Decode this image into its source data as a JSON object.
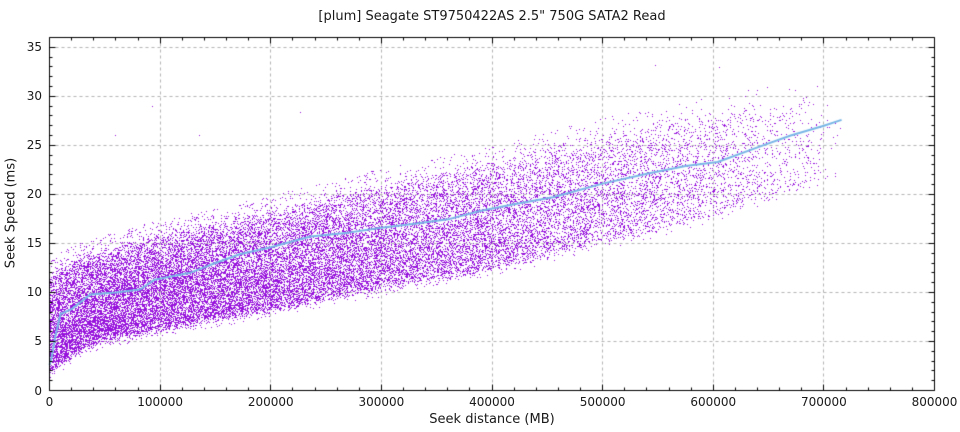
{
  "chart_data": {
    "type": "scatter",
    "title": "[plum] Seagate ST9750422AS 2.5\" 750G SATA2 Read",
    "xlabel": "Seek distance (MB)",
    "ylabel": "Seek Speed (ms)",
    "xlim": [
      0,
      800000
    ],
    "ylim": [
      0,
      36
    ],
    "x_major_ticks": [
      0,
      100000,
      200000,
      300000,
      400000,
      500000,
      600000,
      700000,
      800000
    ],
    "x_minor_step": 20000,
    "y_major_ticks": [
      0,
      5,
      10,
      15,
      20,
      25,
      30,
      35
    ],
    "y_minor_step": 1,
    "grid": "dashed-at-major-ticks",
    "legend": "none",
    "colors": {
      "points": "#9712dc",
      "trend": "#79b6e6",
      "grid": "#b3b3b3",
      "axis": "#000000",
      "text": "#1a1a1a",
      "background": "#ffffff"
    },
    "scatter_band": [
      [
        0,
        1.8,
        11.8
      ],
      [
        10000,
        2.8,
        12.4
      ],
      [
        25000,
        4.0,
        13.2
      ],
      [
        50000,
        5.2,
        14.2
      ],
      [
        100000,
        6.3,
        15.6
      ],
      [
        150000,
        7.3,
        16.8
      ],
      [
        200000,
        8.3,
        18.2
      ],
      [
        250000,
        9.4,
        19.5
      ],
      [
        300000,
        10.4,
        20.8
      ],
      [
        350000,
        11.4,
        22.0
      ],
      [
        400000,
        12.5,
        23.2
      ],
      [
        450000,
        13.8,
        24.6
      ],
      [
        500000,
        15.2,
        26.0
      ],
      [
        550000,
        16.5,
        27.2
      ],
      [
        600000,
        18.0,
        28.2
      ],
      [
        650000,
        19.6,
        29.2
      ],
      [
        700000,
        21.3,
        30.0
      ],
      [
        718000,
        22.2,
        30.2
      ]
    ],
    "trend_line": [
      [
        0,
        2.6
      ],
      [
        2000,
        3.4
      ],
      [
        5000,
        5.4
      ],
      [
        10000,
        7.8
      ],
      [
        20000,
        8.3
      ],
      [
        37000,
        9.8
      ],
      [
        60000,
        10.0
      ],
      [
        82000,
        10.3
      ],
      [
        95000,
        11.3
      ],
      [
        127000,
        12.0
      ],
      [
        150000,
        13.0
      ],
      [
        172000,
        13.9
      ],
      [
        200000,
        14.6
      ],
      [
        236000,
        15.7
      ],
      [
        270000,
        16.1
      ],
      [
        300000,
        16.6
      ],
      [
        330000,
        17.0
      ],
      [
        362000,
        17.5
      ],
      [
        389000,
        18.3
      ],
      [
        420000,
        19.0
      ],
      [
        455000,
        19.7
      ],
      [
        500000,
        21.1
      ],
      [
        540000,
        22.1
      ],
      [
        575000,
        22.9
      ],
      [
        604000,
        23.3
      ],
      [
        640000,
        24.8
      ],
      [
        670000,
        26.0
      ],
      [
        700000,
        27.0
      ],
      [
        716000,
        27.6
      ]
    ],
    "outliers": [
      [
        59000,
        26.1
      ],
      [
        93000,
        29.0
      ],
      [
        135000,
        26.1
      ],
      [
        226000,
        28.4
      ],
      [
        547000,
        33.2
      ],
      [
        605000,
        33.0
      ]
    ],
    "n_points": 32000,
    "x_data_max": 718000,
    "seed": 1234567
  }
}
